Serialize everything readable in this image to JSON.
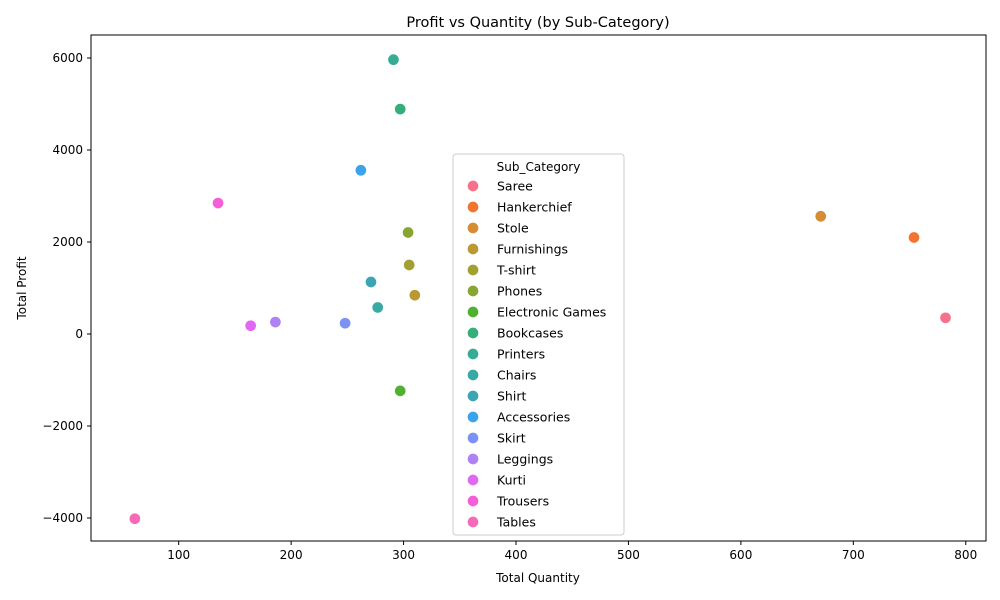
{
  "chart_data": {
    "type": "scatter",
    "title": "Profit vs Quantity (by Sub-Category)",
    "xlabel": "Total Quantity",
    "ylabel": "Total Profit",
    "xlim": [
      22,
      818
    ],
    "ylim": [
      -4500,
      6500
    ],
    "xticks": [
      100,
      200,
      300,
      400,
      500,
      600,
      700,
      800
    ],
    "yticks": [
      -4000,
      -2000,
      0,
      2000,
      4000,
      6000
    ],
    "ytick_labels": [
      "−4000",
      "−2000",
      "0",
      "2000",
      "4000",
      "6000"
    ],
    "legend": {
      "title": "Sub_Category",
      "placement": "center"
    },
    "grid": false,
    "series": [
      {
        "name": "Saree",
        "color": "#f77189",
        "x": 782,
        "y": 352
      },
      {
        "name": "Hankerchief",
        "color": "#f2752f",
        "x": 754,
        "y": 2098
      },
      {
        "name": "Stole",
        "color": "#d58c32",
        "x": 671,
        "y": 2559
      },
      {
        "name": "Furnishings",
        "color": "#bb9832",
        "x": 310,
        "y": 844
      },
      {
        "name": "T-shirt",
        "color": "#a39f31",
        "x": 305,
        "y": 1500
      },
      {
        "name": "Phones",
        "color": "#88a431",
        "x": 304,
        "y": 2207
      },
      {
        "name": "Electronic Games",
        "color": "#50b131",
        "x": 297,
        "y": -1236
      },
      {
        "name": "Bookcases",
        "color": "#34ae7a",
        "x": 297,
        "y": 4888
      },
      {
        "name": "Printers",
        "color": "#36ac94",
        "x": 291,
        "y": 5964
      },
      {
        "name": "Chairs",
        "color": "#38a9a5",
        "x": 277,
        "y": 577
      },
      {
        "name": "Shirt",
        "color": "#3aa5b5",
        "x": 271,
        "y": 1131
      },
      {
        "name": "Accessories",
        "color": "#3ba3ec",
        "x": 262,
        "y": 3559
      },
      {
        "name": "Skirt",
        "color": "#7b91f4",
        "x": 248,
        "y": 235
      },
      {
        "name": "Leggings",
        "color": "#ae81f4",
        "x": 186,
        "y": 260
      },
      {
        "name": "Kurti",
        "color": "#e068f4",
        "x": 164,
        "y": 181
      },
      {
        "name": "Trousers",
        "color": "#f45fd9",
        "x": 135,
        "y": 2847
      },
      {
        "name": "Tables",
        "color": "#f569b7",
        "x": 61,
        "y": -4015
      }
    ]
  }
}
